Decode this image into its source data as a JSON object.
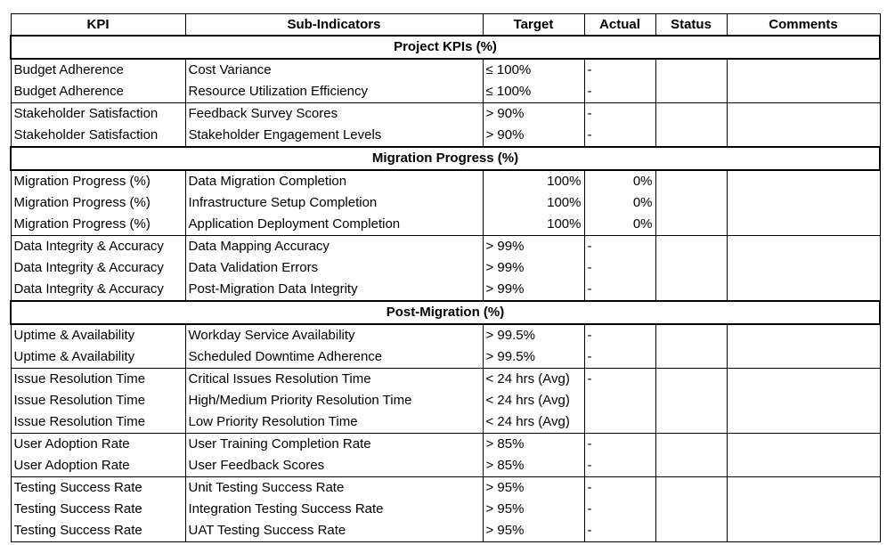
{
  "headers": [
    "KPI",
    "Sub-Indicators",
    "Target",
    "Actual",
    "Status",
    "Comments"
  ],
  "sections": [
    {
      "title": "Project KPIs (%)",
      "groups": [
        [
          {
            "kpi": "Budget Adherence",
            "sub": "Cost Variance",
            "target": "≤ 100%",
            "actual": "-",
            "status": "",
            "comments": ""
          },
          {
            "kpi": "Budget Adherence",
            "sub": "Resource Utilization Efficiency",
            "target": "≤ 100%",
            "actual": "-",
            "status": "",
            "comments": ""
          }
        ],
        [
          {
            "kpi": "Stakeholder Satisfaction",
            "sub": "Feedback Survey Scores",
            "target": "> 90%",
            "actual": "-",
            "status": "",
            "comments": ""
          },
          {
            "kpi": "Stakeholder Satisfaction",
            "sub": "Stakeholder Engagement Levels",
            "target": "> 90%",
            "actual": "-",
            "status": "",
            "comments": ""
          }
        ]
      ]
    },
    {
      "title": "Migration Progress (%)",
      "groups": [
        [
          {
            "kpi": "Migration Progress (%)",
            "sub": "Data Migration Completion",
            "target": "100%",
            "actual": "0%",
            "status": "",
            "comments": "",
            "numeric": true
          },
          {
            "kpi": "Migration Progress (%)",
            "sub": "Infrastructure Setup Completion",
            "target": "100%",
            "actual": "0%",
            "status": "",
            "comments": "",
            "numeric": true
          },
          {
            "kpi": "Migration Progress (%)",
            "sub": "Application Deployment Completion",
            "target": "100%",
            "actual": "0%",
            "status": "",
            "comments": "",
            "numeric": true
          }
        ],
        [
          {
            "kpi": "Data Integrity & Accuracy",
            "sub": "Data Mapping Accuracy",
            "target": "> 99%",
            "actual": "-",
            "status": "",
            "comments": ""
          },
          {
            "kpi": "Data Integrity & Accuracy",
            "sub": "Data Validation Errors",
            "target": "> 99%",
            "actual": "-",
            "status": "",
            "comments": ""
          },
          {
            "kpi": "Data Integrity & Accuracy",
            "sub": "Post-Migration Data Integrity",
            "target": "> 99%",
            "actual": "-",
            "status": "",
            "comments": ""
          }
        ]
      ]
    },
    {
      "title": "Post-Migration (%)",
      "groups": [
        [
          {
            "kpi": "Uptime & Availability",
            "sub": "Workday Service Availability",
            "target": "> 99.5%",
            "actual": "-",
            "status": "",
            "comments": ""
          },
          {
            "kpi": "Uptime & Availability",
            "sub": "Scheduled Downtime Adherence",
            "target": "> 99.5%",
            "actual": "-",
            "status": "",
            "comments": ""
          }
        ],
        [
          {
            "kpi": "Issue Resolution Time",
            "sub": "Critical Issues Resolution Time",
            "target": "< 24 hrs (Avg)",
            "actual": "-",
            "status": "",
            "comments": ""
          },
          {
            "kpi": "Issue Resolution Time",
            "sub": "High/Medium Priority Resolution Time",
            "target": "< 24 hrs (Avg)",
            "actual": "",
            "status": "",
            "comments": ""
          },
          {
            "kpi": "Issue Resolution Time",
            "sub": "Low Priority Resolution Time",
            "target": "< 24 hrs (Avg)",
            "actual": "",
            "status": "",
            "comments": ""
          }
        ],
        [
          {
            "kpi": "User Adoption Rate",
            "sub": "User Training Completion Rate",
            "target": "> 85%",
            "actual": "-",
            "status": "",
            "comments": ""
          },
          {
            "kpi": "User Adoption Rate",
            "sub": "User Feedback Scores",
            "target": "> 85%",
            "actual": "-",
            "status": "",
            "comments": ""
          }
        ],
        [
          {
            "kpi": "Testing Success Rate",
            "sub": "Unit Testing Success Rate",
            "target": "> 95%",
            "actual": "-",
            "status": "",
            "comments": ""
          },
          {
            "kpi": "Testing Success Rate",
            "sub": "Integration Testing Success Rate",
            "target": "> 95%",
            "actual": "-",
            "status": "",
            "comments": ""
          },
          {
            "kpi": "Testing Success Rate",
            "sub": "UAT Testing Success Rate",
            "target": "> 95%",
            "actual": "-",
            "status": "",
            "comments": ""
          }
        ]
      ]
    }
  ]
}
